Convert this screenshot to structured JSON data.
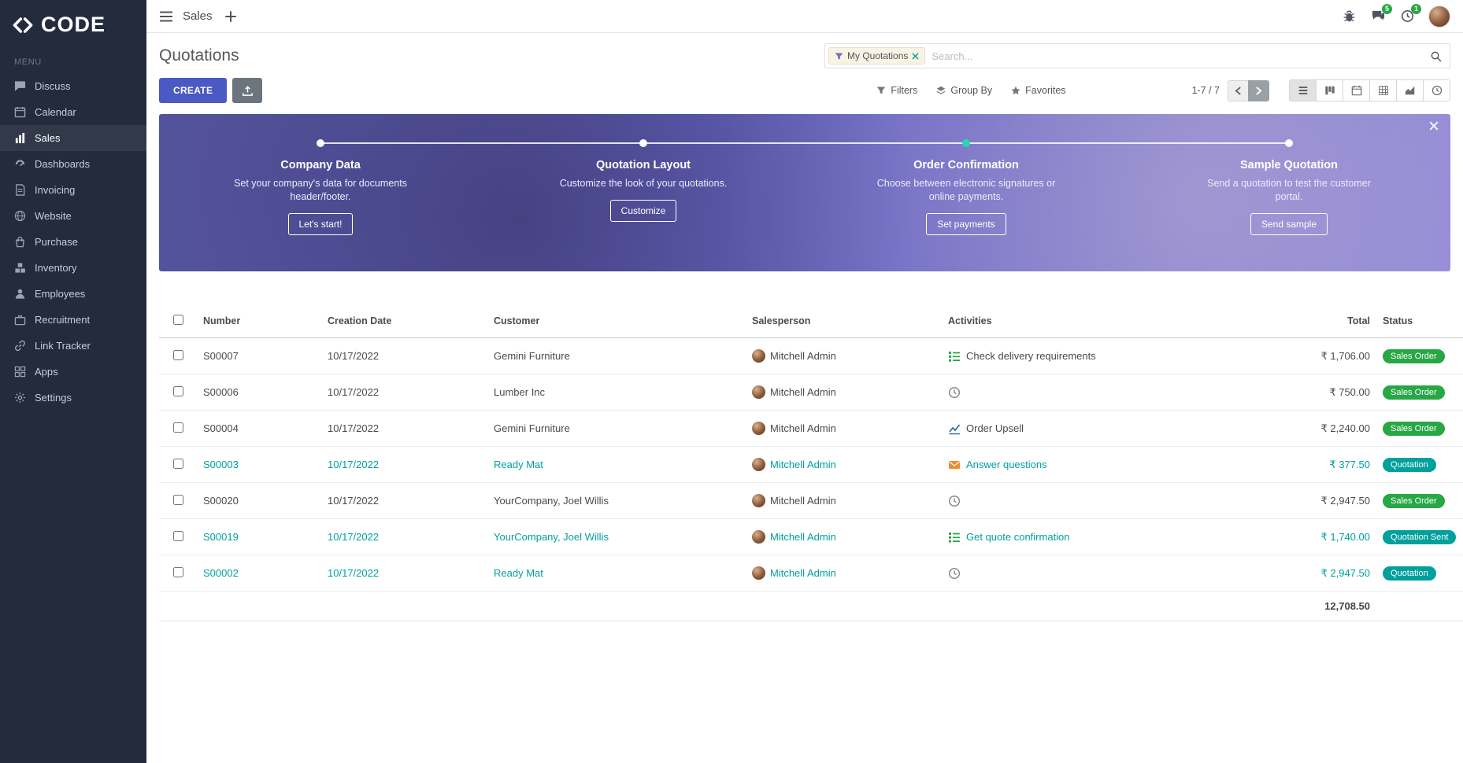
{
  "brand": {
    "logo": "CODE",
    "menu_label": "MENU"
  },
  "topbar": {
    "app": "Sales",
    "chat_badge": "5",
    "activity_badge": "1"
  },
  "sidebar": [
    {
      "label": "Discuss",
      "icon": "chat-icon"
    },
    {
      "label": "Calendar",
      "icon": "calendar-icon"
    },
    {
      "label": "Sales",
      "icon": "sales-icon",
      "active": true
    },
    {
      "label": "Dashboards",
      "icon": "dashboard-icon"
    },
    {
      "label": "Invoicing",
      "icon": "invoice-icon"
    },
    {
      "label": "Website",
      "icon": "globe-icon"
    },
    {
      "label": "Purchase",
      "icon": "purchase-icon"
    },
    {
      "label": "Inventory",
      "icon": "inventory-icon"
    },
    {
      "label": "Employees",
      "icon": "employees-icon"
    },
    {
      "label": "Recruitment",
      "icon": "recruitment-icon"
    },
    {
      "label": "Link Tracker",
      "icon": "link-icon"
    },
    {
      "label": "Apps",
      "icon": "apps-icon"
    },
    {
      "label": "Settings",
      "icon": "settings-icon"
    }
  ],
  "page": {
    "title": "Quotations",
    "search": {
      "facet_label": "My Quotations",
      "placeholder": "Search..."
    },
    "create_label": "CREATE",
    "filters_label": "Filters",
    "groupby_label": "Group By",
    "favorites_label": "Favorites",
    "pager": "1-7 / 7"
  },
  "banner": {
    "steps": [
      {
        "title": "Company Data",
        "desc": "Set your company's data for documents header/footer.",
        "button": "Let's start!",
        "dot": "white"
      },
      {
        "title": "Quotation Layout",
        "desc": "Customize the look of your quotations.",
        "button": "Customize",
        "dot": "white"
      },
      {
        "title": "Order Confirmation",
        "desc": "Choose between electronic signatures or online payments.",
        "button": "Set payments",
        "dot": "teal"
      },
      {
        "title": "Sample Quotation",
        "desc": "Send a quotation to test the customer portal.",
        "button": "Send sample",
        "dot": "white"
      }
    ]
  },
  "table": {
    "columns": [
      "Number",
      "Creation Date",
      "Customer",
      "Salesperson",
      "Activities",
      "Total",
      "Status"
    ],
    "rows": [
      {
        "number": "S00007",
        "date": "10/17/2022",
        "customer": "Gemini Furniture",
        "salesperson": "Mitchell Admin",
        "activity_icon": "list-check-icon",
        "activity": "Check delivery requirements",
        "total": "₹ 1,706.00",
        "status": "Sales Order",
        "status_color": "green",
        "teal": false
      },
      {
        "number": "S00006",
        "date": "10/17/2022",
        "customer": "Lumber Inc",
        "salesperson": "Mitchell Admin",
        "activity_icon": "clock-icon",
        "activity": "",
        "total": "₹ 750.00",
        "status": "Sales Order",
        "status_color": "green",
        "teal": false
      },
      {
        "number": "S00004",
        "date": "10/17/2022",
        "customer": "Gemini Furniture",
        "salesperson": "Mitchell Admin",
        "activity_icon": "chart-line-icon",
        "activity": "Order Upsell",
        "total": "₹ 2,240.00",
        "status": "Sales Order",
        "status_color": "green",
        "teal": false
      },
      {
        "number": "S00003",
        "date": "10/17/2022",
        "customer": "Ready Mat",
        "salesperson": "Mitchell Admin",
        "activity_icon": "envelope-icon",
        "activity": "Answer questions",
        "total": "₹ 377.50",
        "status": "Quotation",
        "status_color": "teal",
        "teal": true
      },
      {
        "number": "S00020",
        "date": "10/17/2022",
        "customer": "YourCompany, Joel Willis",
        "salesperson": "Mitchell Admin",
        "activity_icon": "clock-icon",
        "activity": "",
        "total": "₹ 2,947.50",
        "status": "Sales Order",
        "status_color": "green",
        "teal": false
      },
      {
        "number": "S00019",
        "date": "10/17/2022",
        "customer": "YourCompany, Joel Willis",
        "salesperson": "Mitchell Admin",
        "activity_icon": "list-check-icon",
        "activity": "Get quote confirmation",
        "total": "₹ 1,740.00",
        "status": "Quotation Sent",
        "status_color": "teal",
        "teal": true
      },
      {
        "number": "S00002",
        "date": "10/17/2022",
        "customer": "Ready Mat",
        "salesperson": "Mitchell Admin",
        "activity_icon": "clock-icon",
        "activity": "",
        "total": "₹ 2,947.50",
        "status": "Quotation",
        "status_color": "teal",
        "teal": true
      }
    ],
    "footer_total": "12,708.50"
  },
  "colors": {
    "accent": "#4a5ac2",
    "green": "#28a745",
    "teal": "#00a09d",
    "sidebar": "#232b3d"
  }
}
